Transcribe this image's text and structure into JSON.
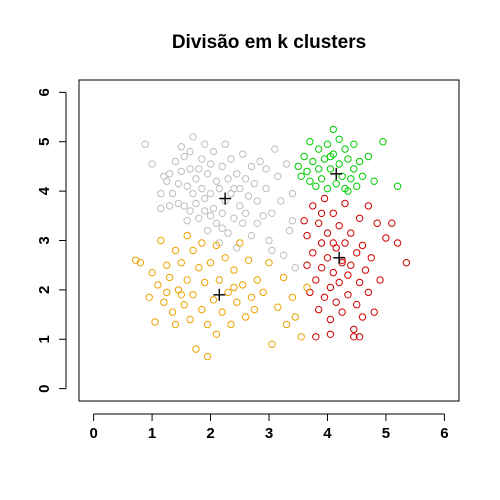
{
  "chart_data": {
    "type": "scatter",
    "title": "Divisão em k clusters",
    "xlabel": "",
    "ylabel": "",
    "xlim": [
      -0.25,
      6.25
    ],
    "ylim": [
      -0.25,
      6.25
    ],
    "x_ticks": [
      "0",
      "1",
      "2",
      "3",
      "4",
      "5",
      "6"
    ],
    "y_ticks": [
      "0",
      "1",
      "2",
      "3",
      "4",
      "5",
      "6"
    ],
    "grid": false,
    "legend": "none",
    "marker": "open-circle",
    "series": [
      {
        "color": "#bebebe",
        "centroid": [
          2.25,
          3.85
        ],
        "points": [
          [
            0.88,
            4.95
          ],
          [
            1.0,
            4.55
          ],
          [
            1.15,
            3.95
          ],
          [
            1.15,
            3.65
          ],
          [
            1.2,
            4.3
          ],
          [
            1.25,
            4.2
          ],
          [
            1.3,
            4.35
          ],
          [
            1.35,
            3.95
          ],
          [
            1.4,
            4.6
          ],
          [
            1.45,
            4.15
          ],
          [
            1.45,
            3.75
          ],
          [
            1.5,
            4.9
          ],
          [
            1.5,
            4.4
          ],
          [
            1.55,
            3.7
          ],
          [
            1.6,
            4.1
          ],
          [
            1.6,
            3.4
          ],
          [
            1.65,
            4.8
          ],
          [
            1.65,
            4.45
          ],
          [
            1.7,
            5.1
          ],
          [
            1.7,
            3.95
          ],
          [
            1.75,
            4.25
          ],
          [
            1.75,
            3.75
          ],
          [
            1.8,
            3.45
          ],
          [
            1.85,
            4.65
          ],
          [
            1.85,
            4.05
          ],
          [
            1.9,
            4.95
          ],
          [
            1.9,
            3.85
          ],
          [
            1.95,
            4.35
          ],
          [
            1.95,
            3.2
          ],
          [
            2.0,
            4.55
          ],
          [
            2.0,
            3.95
          ],
          [
            2.05,
            4.8
          ],
          [
            2.05,
            3.65
          ],
          [
            2.1,
            4.2
          ],
          [
            2.1,
            3.35
          ],
          [
            2.15,
            4.05
          ],
          [
            2.15,
            2.95
          ],
          [
            2.2,
            4.5
          ],
          [
            2.2,
            3.55
          ],
          [
            2.25,
            4.95
          ],
          [
            2.25,
            3.8
          ],
          [
            2.3,
            4.25
          ],
          [
            2.3,
            3.15
          ],
          [
            2.35,
            4.65
          ],
          [
            2.35,
            3.95
          ],
          [
            2.4,
            3.45
          ],
          [
            2.45,
            4.35
          ],
          [
            2.45,
            2.85
          ],
          [
            2.5,
            4.05
          ],
          [
            2.5,
            3.7
          ],
          [
            2.55,
            4.75
          ],
          [
            2.6,
            4.25
          ],
          [
            2.6,
            3.55
          ],
          [
            2.65,
            3.9
          ],
          [
            2.7,
            4.5
          ],
          [
            2.7,
            3.1
          ],
          [
            2.75,
            4.15
          ],
          [
            2.8,
            3.8
          ],
          [
            2.8,
            3.35
          ],
          [
            2.85,
            4.6
          ],
          [
            2.9,
            3.5
          ],
          [
            2.95,
            4.05
          ],
          [
            3.0,
            3.0
          ],
          [
            3.05,
            3.55
          ],
          [
            3.1,
            4.85
          ],
          [
            3.15,
            4.3
          ],
          [
            3.2,
            3.8
          ],
          [
            3.25,
            2.7
          ],
          [
            3.3,
            4.55
          ],
          [
            3.35,
            3.2
          ],
          [
            3.4,
            3.95
          ],
          [
            3.45,
            2.45
          ],
          [
            1.55,
            4.7
          ],
          [
            1.65,
            3.6
          ],
          [
            1.9,
            3.6
          ],
          [
            2.4,
            4.05
          ],
          [
            2.55,
            3.35
          ],
          [
            2.2,
            3.25
          ],
          [
            1.8,
            4.45
          ],
          [
            2.95,
            4.45
          ],
          [
            3.05,
            2.8
          ],
          [
            3.4,
            3.4
          ],
          [
            1.3,
            3.7
          ],
          [
            2.0,
            3.5
          ]
        ]
      },
      {
        "color": "#00cd00",
        "centroid": [
          4.15,
          4.35
        ],
        "points": [
          [
            3.5,
            4.5
          ],
          [
            3.55,
            4.3
          ],
          [
            3.6,
            4.7
          ],
          [
            3.65,
            4.4
          ],
          [
            3.7,
            4.2
          ],
          [
            3.75,
            4.6
          ],
          [
            3.8,
            4.1
          ],
          [
            3.85,
            4.85
          ],
          [
            3.85,
            4.45
          ],
          [
            3.9,
            4.25
          ],
          [
            3.95,
            4.65
          ],
          [
            4.0,
            4.05
          ],
          [
            4.0,
            4.95
          ],
          [
            4.05,
            4.45
          ],
          [
            4.1,
            5.25
          ],
          [
            4.1,
            4.75
          ],
          [
            4.15,
            4.15
          ],
          [
            4.2,
            5.05
          ],
          [
            4.2,
            4.55
          ],
          [
            4.25,
            4.3
          ],
          [
            4.3,
            4.85
          ],
          [
            4.3,
            4.05
          ],
          [
            4.35,
            4.65
          ],
          [
            4.4,
            4.25
          ],
          [
            4.45,
            4.95
          ],
          [
            4.45,
            4.45
          ],
          [
            4.5,
            4.1
          ],
          [
            4.55,
            4.6
          ],
          [
            4.6,
            4.3
          ],
          [
            4.7,
            4.7
          ],
          [
            4.8,
            4.2
          ],
          [
            4.95,
            5.0
          ],
          [
            5.2,
            4.1
          ],
          [
            3.7,
            5.0
          ],
          [
            4.05,
            4.7
          ],
          [
            4.35,
            4.0
          ]
        ]
      },
      {
        "color": "#cd0000",
        "centroid": [
          4.2,
          2.65
        ],
        "points": [
          [
            3.6,
            3.4
          ],
          [
            3.65,
            3.1
          ],
          [
            3.65,
            2.5
          ],
          [
            3.7,
            1.95
          ],
          [
            3.75,
            3.7
          ],
          [
            3.75,
            2.75
          ],
          [
            3.8,
            2.2
          ],
          [
            3.85,
            3.35
          ],
          [
            3.85,
            1.6
          ],
          [
            3.9,
            2.95
          ],
          [
            3.9,
            2.45
          ],
          [
            3.95,
            3.85
          ],
          [
            3.95,
            1.85
          ],
          [
            4.0,
            3.15
          ],
          [
            4.0,
            2.65
          ],
          [
            4.05,
            2.05
          ],
          [
            4.05,
            1.4
          ],
          [
            4.1,
            3.55
          ],
          [
            4.1,
            2.35
          ],
          [
            4.15,
            2.85
          ],
          [
            4.15,
            1.75
          ],
          [
            4.2,
            3.3
          ],
          [
            4.2,
            2.15
          ],
          [
            4.25,
            2.6
          ],
          [
            4.25,
            1.55
          ],
          [
            4.3,
            3.75
          ],
          [
            4.3,
            2.95
          ],
          [
            4.35,
            2.3
          ],
          [
            4.35,
            1.9
          ],
          [
            4.4,
            3.15
          ],
          [
            4.4,
            2.5
          ],
          [
            4.45,
            1.2
          ],
          [
            4.5,
            2.75
          ],
          [
            4.5,
            1.7
          ],
          [
            4.55,
            3.45
          ],
          [
            4.55,
            2.15
          ],
          [
            4.6,
            2.9
          ],
          [
            4.6,
            1.45
          ],
          [
            4.65,
            2.4
          ],
          [
            4.7,
            3.7
          ],
          [
            4.7,
            1.95
          ],
          [
            4.75,
            2.65
          ],
          [
            4.8,
            1.55
          ],
          [
            4.85,
            3.35
          ],
          [
            4.9,
            2.2
          ],
          [
            5.0,
            3.05
          ],
          [
            5.1,
            3.35
          ],
          [
            5.2,
            2.95
          ],
          [
            5.35,
            2.55
          ],
          [
            4.45,
            1.05
          ],
          [
            4.05,
            1.1
          ],
          [
            3.8,
            1.05
          ],
          [
            4.25,
            2.55
          ],
          [
            4.1,
            2.95
          ],
          [
            3.9,
            3.55
          ],
          [
            4.55,
            1.05
          ]
        ]
      },
      {
        "color": "#eea300",
        "centroid": [
          2.15,
          1.9
        ],
        "points": [
          [
            0.72,
            2.6
          ],
          [
            0.95,
            1.85
          ],
          [
            1.0,
            2.35
          ],
          [
            1.05,
            1.35
          ],
          [
            1.1,
            2.1
          ],
          [
            1.15,
            3.0
          ],
          [
            1.2,
            1.75
          ],
          [
            1.25,
            2.5
          ],
          [
            1.3,
            2.25
          ],
          [
            1.35,
            1.55
          ],
          [
            1.4,
            2.8
          ],
          [
            1.4,
            1.3
          ],
          [
            1.45,
            2.0
          ],
          [
            1.5,
            2.55
          ],
          [
            1.55,
            1.7
          ],
          [
            1.6,
            3.1
          ],
          [
            1.6,
            2.2
          ],
          [
            1.65,
            1.4
          ],
          [
            1.7,
            2.8
          ],
          [
            1.7,
            1.9
          ],
          [
            1.75,
            0.8
          ],
          [
            1.8,
            2.45
          ],
          [
            1.85,
            1.6
          ],
          [
            1.85,
            2.95
          ],
          [
            1.9,
            2.15
          ],
          [
            1.95,
            1.3
          ],
          [
            1.95,
            0.65
          ],
          [
            2.0,
            2.55
          ],
          [
            2.05,
            1.8
          ],
          [
            2.1,
            2.9
          ],
          [
            2.1,
            1.1
          ],
          [
            2.15,
            2.2
          ],
          [
            2.2,
            1.55
          ],
          [
            2.25,
            2.65
          ],
          [
            2.3,
            1.95
          ],
          [
            2.35,
            1.3
          ],
          [
            2.4,
            2.4
          ],
          [
            2.45,
            1.75
          ],
          [
            2.5,
            2.95
          ],
          [
            2.55,
            2.1
          ],
          [
            2.6,
            1.45
          ],
          [
            2.65,
            2.6
          ],
          [
            2.7,
            1.85
          ],
          [
            2.75,
            1.6
          ],
          [
            2.8,
            2.2
          ],
          [
            2.9,
            1.95
          ],
          [
            3.0,
            2.55
          ],
          [
            3.05,
            0.9
          ],
          [
            3.15,
            1.65
          ],
          [
            3.25,
            2.25
          ],
          [
            3.3,
            1.3
          ],
          [
            3.4,
            1.85
          ],
          [
            3.45,
            1.45
          ],
          [
            3.55,
            1.05
          ],
          [
            3.65,
            2.05
          ],
          [
            1.5,
            1.9
          ],
          [
            1.25,
            1.95
          ],
          [
            2.4,
            2.05
          ],
          [
            0.8,
            2.55
          ]
        ]
      }
    ]
  }
}
